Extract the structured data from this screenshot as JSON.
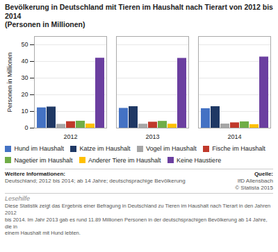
{
  "chart_data": {
    "type": "bar",
    "title": "Bevölkerung in Deutschland mit Tieren im Haushalt nach Tierart von 2012 bis 2014",
    "subtitle": "(Personen in Millionen)",
    "ylabel": "Personen in Millionen",
    "categories": [
      "2012",
      "2013",
      "2014"
    ],
    "series": [
      {
        "name": "Hund im Haushalt",
        "color": "#4472C4",
        "values": [
          12.2,
          11.9,
          11.7
        ]
      },
      {
        "name": "Katze im Haushalt",
        "color": "#1F3864",
        "values": [
          12.7,
          12.9,
          12.9
        ]
      },
      {
        "name": "Vogel im Haushalt",
        "color": "#A6A6A6",
        "values": [
          2.3,
          2.4,
          2.5
        ]
      },
      {
        "name": "Fische im Haushalt",
        "color": "#C0392B",
        "values": [
          3.9,
          3.6,
          3.2
        ]
      },
      {
        "name": "Nagetier im Haushalt",
        "color": "#70AD47",
        "values": [
          4.2,
          4.1,
          3.8
        ]
      },
      {
        "name": "Anderer Tiere im Haushalt",
        "color": "#FFC000",
        "values": [
          2.5,
          2.4,
          2.1
        ]
      },
      {
        "name": "Keine Haustiere",
        "color": "#6B3FA0",
        "values": [
          42.0,
          41.9,
          42.7
        ]
      }
    ],
    "ylim": [
      0,
      55
    ],
    "yticks": [
      0,
      10,
      20,
      30,
      40,
      50
    ],
    "grid": true,
    "legend": "bottom",
    "notes": [
      {
        "title": "Weitere Informationen:",
        "lines": [
          "Deutschland; 2012 bis 2014; ab 14 Jahre; deutschsprachige Bevölkerung"
        ]
      },
      {
        "title": "Quelle:",
        "lines": [
          "IfD Allensbach",
          "© Statista 2015"
        ]
      }
    ],
    "reading_aid": {
      "title": "Lesehilfe",
      "text": "Diese Statistik zeigt das Ergebnis einer Befragung in Deutschland zu Tieren im Haushalt nach Tierart in den Jahren 2012\nbis 2014. Im Jahr 2013 gab es rund 11.89 Millionen Personen in der deutschsprachigen Bevölkerung ab 14 Jahre, die in\neinem Haushalt mit Hund lebten."
    }
  }
}
